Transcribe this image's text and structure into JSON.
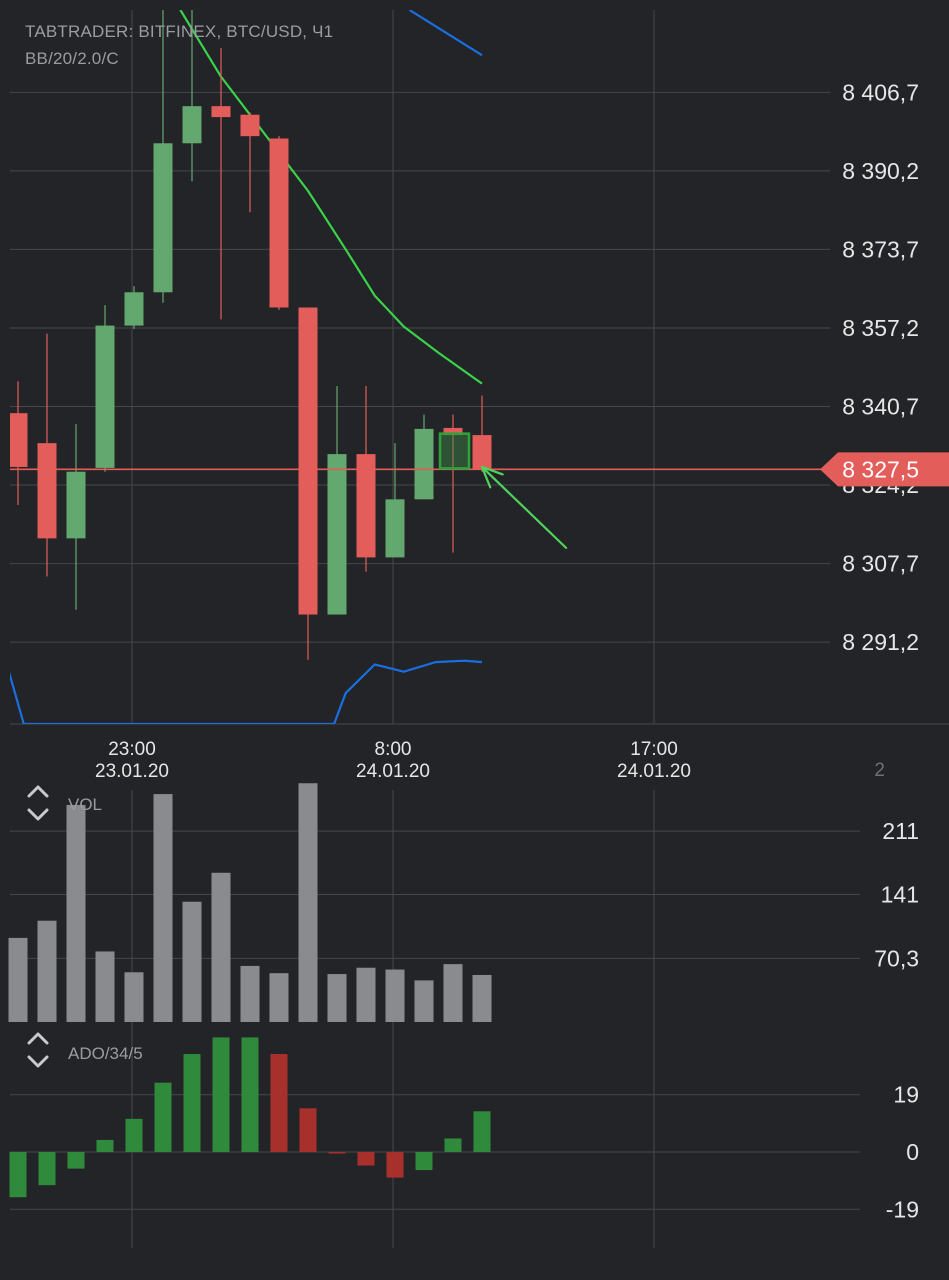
{
  "header": {
    "line1": "TABTRADER: BITFINEX, BTC/USD, Ч1",
    "line2": "BB/20/2.0/C"
  },
  "colors": {
    "background": "#232428",
    "grid": "#45474c",
    "up": "#63a86e",
    "down": "#e35d5a",
    "bb_upper": "#3bd24a",
    "bb_lower": "#1a6fe0",
    "vol_bar": "#8a8b8f",
    "ado_up": "#2f8a3b",
    "ado_down": "#a8302c",
    "axis_text": "#e6e6e6",
    "arrow": "#4fd35a"
  },
  "chart_data": [
    {
      "type": "candlestick",
      "y_ticks": [
        "8 406,7",
        "8 390,2",
        "8 373,7",
        "8 357,2",
        "8 340,7",
        "8 324,2",
        "8 307,7",
        "8 291,2"
      ],
      "y_tick_values": [
        8406.7,
        8390.2,
        8373.7,
        8357.2,
        8340.7,
        8324.2,
        8307.7,
        8291.2
      ],
      "ylim": [
        8274.0,
        8424.0
      ],
      "x_ticks": [
        {
          "time": "23:00",
          "date": "23.01.20"
        },
        {
          "time": "8:00",
          "date": "24.01.20"
        },
        {
          "time": "17:00",
          "date": "24.01.20"
        }
      ],
      "x_tick_index": [
        4,
        13,
        22
      ],
      "current_price": "8 327,5",
      "current_price_value": 8327.5,
      "candles": [
        {
          "i": 0,
          "o": 8339.3,
          "h": 8346.0,
          "l": 8320.0,
          "c": 8328.0
        },
        {
          "i": 1,
          "o": 8333.0,
          "h": 8356.0,
          "l": 8305.0,
          "c": 8313.0
        },
        {
          "i": 2,
          "o": 8313.0,
          "h": 8337.0,
          "l": 8298.0,
          "c": 8327.0
        },
        {
          "i": 3,
          "o": 8327.8,
          "h": 8362.0,
          "l": 8327.0,
          "c": 8357.7
        },
        {
          "i": 4,
          "o": 8357.7,
          "h": 8366.0,
          "l": 8357.0,
          "c": 8364.7
        },
        {
          "i": 5,
          "o": 8364.7,
          "h": 8428.0,
          "l": 8362.5,
          "c": 8396.0
        },
        {
          "i": 6,
          "o": 8396.0,
          "h": 8424.0,
          "l": 8388.0,
          "c": 8403.8
        },
        {
          "i": 7,
          "o": 8403.8,
          "h": 8416.0,
          "l": 8359.0,
          "c": 8401.5
        },
        {
          "i": 8,
          "o": 8402.0,
          "h": 8402.5,
          "l": 8381.5,
          "c": 8397.5
        },
        {
          "i": 9,
          "o": 8397.0,
          "h": 8397.5,
          "l": 8361.0,
          "c": 8361.5
        },
        {
          "i": 10,
          "o": 8361.5,
          "h": 8361.5,
          "l": 8287.5,
          "c": 8297.0
        },
        {
          "i": 11,
          "o": 8297.0,
          "h": 8345.0,
          "l": 8297.0,
          "c": 8330.7
        },
        {
          "i": 12,
          "o": 8330.7,
          "h": 8345.0,
          "l": 8306.0,
          "c": 8309.0
        },
        {
          "i": 13,
          "o": 8309.0,
          "h": 8333.0,
          "l": 8309.0,
          "c": 8321.2
        },
        {
          "i": 14,
          "o": 8321.2,
          "h": 8339.0,
          "l": 8321.2,
          "c": 8336.0
        },
        {
          "i": 15,
          "o": 8336.2,
          "h": 8339.0,
          "l": 8310.0,
          "c": 8334.7
        },
        {
          "i": 16,
          "o": 8334.7,
          "h": 8343.0,
          "l": 8327.0,
          "c": 8327.5
        }
      ],
      "bb_upper": [
        {
          "i": 5.6,
          "v": 8424.0
        },
        {
          "i": 7.0,
          "v": 8410.0
        },
        {
          "i": 8.5,
          "v": 8398.0
        },
        {
          "i": 10.0,
          "v": 8386.0
        },
        {
          "i": 11.3,
          "v": 8373.7
        },
        {
          "i": 12.3,
          "v": 8364.0
        },
        {
          "i": 13.3,
          "v": 8357.5
        },
        {
          "i": 14.5,
          "v": 8352.0
        },
        {
          "i": 16.0,
          "v": 8345.5
        }
      ],
      "bb_upper_prev": [
        {
          "i": 13.5,
          "v": 8424.0
        },
        {
          "i": 16.0,
          "v": 8414.5
        }
      ],
      "bb_lower": [
        {
          "i": -0.5,
          "v": 8289.0
        },
        {
          "i": 0.2,
          "v": 8274.0
        },
        {
          "i": 10.9,
          "v": 8274.0
        },
        {
          "i": 11.3,
          "v": 8280.5
        },
        {
          "i": 12.3,
          "v": 8286.5
        },
        {
          "i": 13.3,
          "v": 8285.0
        },
        {
          "i": 14.4,
          "v": 8287.0
        },
        {
          "i": 15.4,
          "v": 8287.3
        },
        {
          "i": 16.0,
          "v": 8287.0
        }
      ],
      "annotation": {
        "box_candle": 15,
        "box_low": 8327.7,
        "box_high": 8335.0,
        "arrow_from": {
          "i": 18.9,
          "v": 8311.0
        },
        "arrow_to": {
          "i": 16.0,
          "v": 8328.0
        }
      }
    },
    {
      "type": "bar",
      "title": "VOL",
      "y_ticks": [
        "211",
        "141",
        "70,3"
      ],
      "y_tick_values": [
        211,
        141,
        70.3
      ],
      "ylim": [
        0,
        272
      ],
      "partial_top_tick": "2",
      "values": [
        93,
        112,
        240,
        78,
        55,
        252,
        133,
        165,
        62,
        54,
        264,
        53,
        60,
        58,
        46,
        64,
        52
      ]
    },
    {
      "type": "bar",
      "title": "ADO/34/5",
      "y_ticks": [
        "19",
        "0",
        "-19"
      ],
      "y_tick_values": [
        19,
        0,
        -19
      ],
      "ylim": [
        -23,
        38.5
      ],
      "values": [
        -15,
        -11,
        -5.5,
        4,
        11,
        23,
        32.5,
        38,
        38,
        32.5,
        14.5,
        0,
        -4.5,
        -8.5,
        -6,
        4.5,
        13.5
      ]
    }
  ]
}
